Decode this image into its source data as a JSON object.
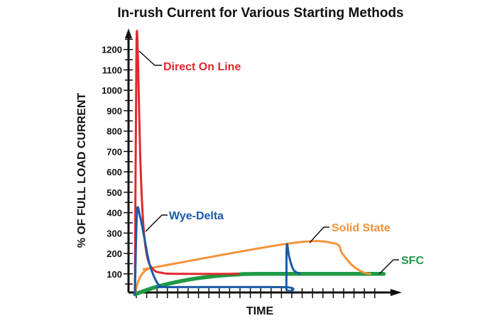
{
  "chart_data": {
    "type": "line",
    "title": "In-rush Current for Various Starting Methods",
    "xlabel": "TIME",
    "ylabel": "% OF FULL LOAD CURRENT",
    "ylim": [
      0,
      1250
    ],
    "xlim": [
      0,
      25
    ],
    "yticks": [
      "100",
      "200",
      "300",
      "400",
      "500",
      "600",
      "700",
      "800",
      "900",
      "1000",
      "1100",
      "1200"
    ],
    "x_tick_labels": "none",
    "grid": false,
    "colors": {
      "axis": "#111111",
      "Direct On Line": "#e0282e",
      "Wye-Delta": "#1b5aa5",
      "Solid State": "#f5923a",
      "SFC": "#1f9a45"
    },
    "series": [
      {
        "name": "Direct On Line",
        "points": [
          [
            0,
            0
          ],
          [
            0.15,
            1200
          ],
          [
            0.3,
            1150
          ],
          [
            0.5,
            700
          ],
          [
            0.8,
            350
          ],
          [
            1.2,
            180
          ],
          [
            1.8,
            120
          ],
          [
            2.6,
            105
          ],
          [
            4,
            100
          ],
          [
            10,
            100
          ]
        ]
      },
      {
        "name": "Wye-Delta",
        "points": [
          [
            0,
            0
          ],
          [
            0.2,
            400
          ],
          [
            0.5,
            380
          ],
          [
            0.9,
            280
          ],
          [
            1.4,
            150
          ],
          [
            2,
            70
          ],
          [
            2.5,
            38
          ],
          [
            3.2,
            35
          ],
          [
            14.4,
            35
          ],
          [
            14.6,
            30
          ],
          [
            14.65,
            240
          ],
          [
            14.9,
            180
          ],
          [
            15.3,
            120
          ],
          [
            15.9,
            100
          ]
        ]
      },
      {
        "name": "Solid State",
        "points": [
          [
            0,
            0
          ],
          [
            0.3,
            60
          ],
          [
            0.7,
            100
          ],
          [
            1.3,
            125
          ],
          [
            2,
            133
          ],
          [
            15,
            250
          ],
          [
            19.2,
            250
          ],
          [
            20,
            200
          ],
          [
            21,
            140
          ],
          [
            22,
            108
          ],
          [
            22.7,
            100
          ]
        ]
      },
      {
        "name": "SFC",
        "points": [
          [
            0,
            0
          ],
          [
            2,
            35
          ],
          [
            4,
            60
          ],
          [
            6,
            78
          ],
          [
            8,
            90
          ],
          [
            10,
            97
          ],
          [
            12,
            100
          ],
          [
            24,
            100
          ]
        ]
      }
    ]
  }
}
